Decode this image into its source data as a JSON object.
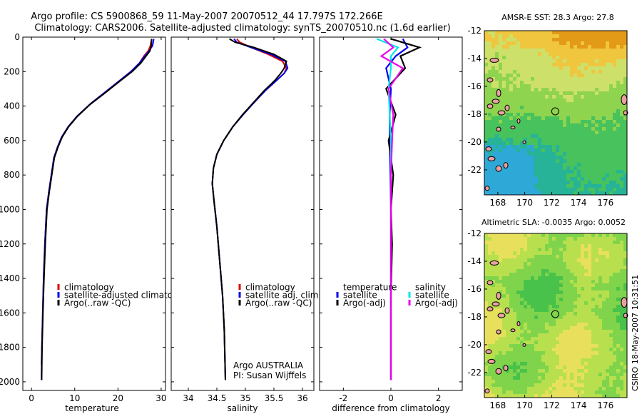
{
  "header": {
    "line1": "Argo profile: CS 5900868_59 11-May-2007 20070512_44 17.797S 172.266E",
    "line2": "Climatology: CARS2006. Satellite-adjusted climatology: synTS_20070510.nc (1.6d earlier)"
  },
  "colors": {
    "climatology": "#e00000",
    "satellite": "#0000ee",
    "argo": "#000000",
    "sat_salinity": "#00e5ee",
    "argo_adj_salinity": "#ee00ee",
    "land": "#e8a0a0"
  },
  "chart_data": [
    {
      "type": "line",
      "name": "temperature-profile",
      "xlabel": "temperature",
      "ylabel": "",
      "xlim": [
        -2,
        31
      ],
      "ylim": [
        2050,
        0
      ],
      "xticks": [
        "0",
        "10",
        "20",
        "30"
      ],
      "xtick_values": [
        0,
        10,
        20,
        30
      ],
      "yticks": [
        "0",
        "200",
        "400",
        "600",
        "800",
        "1000",
        "1200",
        "1400",
        "1600",
        "1800",
        "2000"
      ],
      "ytick_values": [
        0,
        200,
        400,
        600,
        800,
        1000,
        1200,
        1400,
        1600,
        1800,
        2000
      ],
      "legend": [
        "climatology",
        "satellite-adjusted climatology",
        "Argo(..raw -QC)"
      ],
      "series": [
        {
          "name": "climatology",
          "color_key": "climatology",
          "x": [
            27.8,
            27.5,
            27.0,
            26.0,
            25.0,
            23.0,
            20.5,
            17.0,
            13.5,
            10.5,
            8.5,
            7.0,
            6.0,
            5.2,
            4.6,
            4.0,
            3.5,
            3.1,
            2.8,
            2.6,
            2.4,
            2.3
          ],
          "y": [
            10,
            50,
            80,
            110,
            150,
            200,
            250,
            320,
            390,
            460,
            520,
            580,
            640,
            700,
            800,
            900,
            1000,
            1200,
            1400,
            1600,
            1800,
            1900
          ]
        },
        {
          "name": "satellite-adjusted climatology",
          "color_key": "satellite",
          "x": [
            28.3,
            28.0,
            27.2,
            26.2,
            25.0,
            23.0,
            20.5,
            17.0,
            13.5,
            10.5,
            8.5,
            7.0,
            6.0,
            5.2,
            4.6,
            4.0,
            3.5,
            3.1,
            2.8,
            2.6,
            2.4,
            2.3
          ],
          "y": [
            10,
            50,
            80,
            110,
            150,
            200,
            250,
            320,
            390,
            460,
            520,
            580,
            640,
            700,
            800,
            900,
            1000,
            1200,
            1400,
            1600,
            1800,
            1990
          ]
        },
        {
          "name": "Argo(..raw -QC)",
          "color_key": "argo",
          "x": [
            27.8,
            27.7,
            27.4,
            26.5,
            25.3,
            23.3,
            20.7,
            17.2,
            13.6,
            10.6,
            8.6,
            7.1,
            6.1,
            5.3,
            4.7,
            4.1,
            3.6,
            3.2,
            2.9,
            2.65,
            2.45,
            2.35
          ],
          "y": [
            10,
            50,
            80,
            110,
            150,
            200,
            250,
            320,
            390,
            460,
            520,
            580,
            640,
            700,
            800,
            900,
            1000,
            1200,
            1400,
            1600,
            1800,
            1990
          ]
        }
      ]
    },
    {
      "type": "line",
      "name": "salinity-profile",
      "xlabel": "salinity",
      "xlim": [
        33.7,
        36.2
      ],
      "ylim": [
        2050,
        0
      ],
      "xticks": [
        "34",
        "34.5",
        "35",
        "35.5",
        "36"
      ],
      "xtick_values": [
        34,
        34.5,
        35,
        35.5,
        36
      ],
      "legend": [
        "climatology",
        "satellite adj. clim.",
        "Argo(..raw -QC)"
      ],
      "annotation": [
        "Argo AUSTRALIA",
        "PI: Susan Wijffels"
      ],
      "series": [
        {
          "name": "climatology",
          "color_key": "climatology",
          "x": [
            34.85,
            34.9,
            35.1,
            35.4,
            35.65,
            35.72,
            35.68,
            35.55,
            35.35,
            35.15,
            34.95,
            34.78,
            34.62,
            34.5,
            34.44,
            34.42,
            34.45,
            34.5,
            34.55,
            34.6,
            34.63,
            34.65
          ],
          "y": [
            10,
            30,
            60,
            100,
            140,
            180,
            210,
            250,
            310,
            380,
            450,
            520,
            600,
            680,
            760,
            850,
            950,
            1100,
            1300,
            1500,
            1700,
            1990
          ]
        },
        {
          "name": "satellite adj. clim.",
          "color_key": "satellite",
          "x": [
            34.8,
            34.85,
            35.1,
            35.45,
            35.7,
            35.74,
            35.68,
            35.55,
            35.35,
            35.15,
            34.96,
            34.78,
            34.62,
            34.5,
            34.44,
            34.42,
            34.45,
            34.5,
            34.55,
            34.6,
            34.63,
            34.65
          ],
          "y": [
            10,
            30,
            60,
            100,
            140,
            180,
            210,
            250,
            310,
            380,
            450,
            520,
            600,
            680,
            760,
            850,
            950,
            1100,
            1300,
            1500,
            1700,
            1990
          ]
        },
        {
          "name": "Argo(..raw -QC)",
          "color_key": "argo",
          "x": [
            34.72,
            34.82,
            35.15,
            35.5,
            35.72,
            35.68,
            35.62,
            35.52,
            35.33,
            35.14,
            34.95,
            34.78,
            34.62,
            34.5,
            34.44,
            34.42,
            34.45,
            34.5,
            34.55,
            34.6,
            34.63,
            34.65
          ],
          "y": [
            10,
            30,
            60,
            100,
            140,
            180,
            210,
            250,
            310,
            380,
            450,
            520,
            600,
            680,
            760,
            850,
            950,
            1100,
            1300,
            1500,
            1700,
            1990
          ]
        }
      ]
    },
    {
      "type": "line",
      "name": "difference-profile",
      "xlabel": "difference from climatology",
      "xlim": [
        -3.0,
        3.0
      ],
      "ylim": [
        2050,
        0
      ],
      "xticks": [
        "-2",
        "0",
        "2"
      ],
      "xtick_values": [
        -2,
        0,
        2
      ],
      "legend_temperature_title": "temperature",
      "legend_salinity_title": "salinity",
      "legend": [
        "satellite",
        "Argo(-adj)",
        "satellite",
        "Argo(-adj)"
      ],
      "series": [
        {
          "name": "temperature satellite",
          "color_key": "satellite",
          "x": [
            0.5,
            0.7,
            0.2,
            -0.2,
            0.0,
            -0.05,
            -0.05,
            -0.02,
            0.0,
            0.0,
            0.0,
            0.0,
            0.0
          ],
          "y": [
            10,
            60,
            110,
            180,
            300,
            450,
            600,
            800,
            1000,
            1200,
            1500,
            1800,
            1990
          ]
        },
        {
          "name": "temperature Argo(-adj)",
          "color_key": "argo",
          "x": [
            0.0,
            1.2,
            0.4,
            0.6,
            -0.2,
            0.2,
            -0.1,
            0.1,
            0.0,
            0.05,
            0.0,
            0.0,
            0.0
          ],
          "y": [
            10,
            60,
            110,
            180,
            300,
            450,
            600,
            800,
            1000,
            1200,
            1500,
            1800,
            1990
          ]
        },
        {
          "name": "salinity satellite",
          "color_key": "sat_salinity",
          "x": [
            -0.6,
            0.3,
            0.0,
            0.0,
            -0.1,
            -0.05,
            0.0,
            0.0,
            0.0,
            0.0,
            0.0,
            0.0,
            0.0
          ],
          "y": [
            10,
            60,
            110,
            180,
            300,
            450,
            600,
            800,
            1000,
            1200,
            1500,
            1800,
            1990
          ]
        },
        {
          "name": "salinity Argo(-adj)",
          "color_key": "argo_adj_salinity",
          "x": [
            -0.3,
            0.1,
            -0.4,
            0.5,
            -0.1,
            0.1,
            0.05,
            0.0,
            0.0,
            0.0,
            0.0,
            0.0,
            0.0
          ],
          "y": [
            10,
            60,
            110,
            180,
            300,
            450,
            600,
            800,
            1000,
            1200,
            1500,
            1800,
            1990
          ]
        }
      ]
    },
    {
      "type": "heatmap",
      "name": "sst-map",
      "title": "AMSR-E SST: 28.3 Argo: 27.8",
      "xlim": [
        167.0,
        177.6
      ],
      "ylim": [
        -23.8,
        -12.0
      ],
      "xticks": [
        "168",
        "170",
        "172",
        "174",
        "176"
      ],
      "xtick_values": [
        168,
        170,
        172,
        174,
        176
      ],
      "yticks": [
        "-12",
        "-14",
        "-16",
        "-18",
        "-20",
        "-22"
      ],
      "ytick_values": [
        -12,
        -14,
        -16,
        -18,
        -20,
        -22
      ],
      "marker": {
        "lon": 172.266,
        "lat": -17.797
      },
      "palette": [
        "#e39a16",
        "#f0c63e",
        "#cde06a",
        "#8fd44e",
        "#47c25c",
        "#26b398",
        "#2ea8d6"
      ]
    },
    {
      "type": "heatmap",
      "name": "sla-map",
      "title": "Altimetric SLA: -0.0035 Argo: 0.0052",
      "xlim": [
        167.0,
        177.6
      ],
      "ylim": [
        -23.8,
        -12.0
      ],
      "xticks": [
        "168",
        "170",
        "172",
        "174",
        "176"
      ],
      "xtick_values": [
        168,
        170,
        172,
        174,
        176
      ],
      "yticks": [
        "-12",
        "-14",
        "-16",
        "-18",
        "-20",
        "-22"
      ],
      "ytick_values": [
        -12,
        -14,
        -16,
        -18,
        -20,
        -22
      ],
      "marker": {
        "lon": 172.266,
        "lat": -17.797
      },
      "palette": [
        "#2fb34c",
        "#48c24a",
        "#7fd44c",
        "#b8e04e",
        "#e8e05c",
        "#f0c840",
        "#e8a030"
      ]
    }
  ],
  "footer": {
    "stamp": "CSIRO 18-May-2007 10:31:51"
  }
}
